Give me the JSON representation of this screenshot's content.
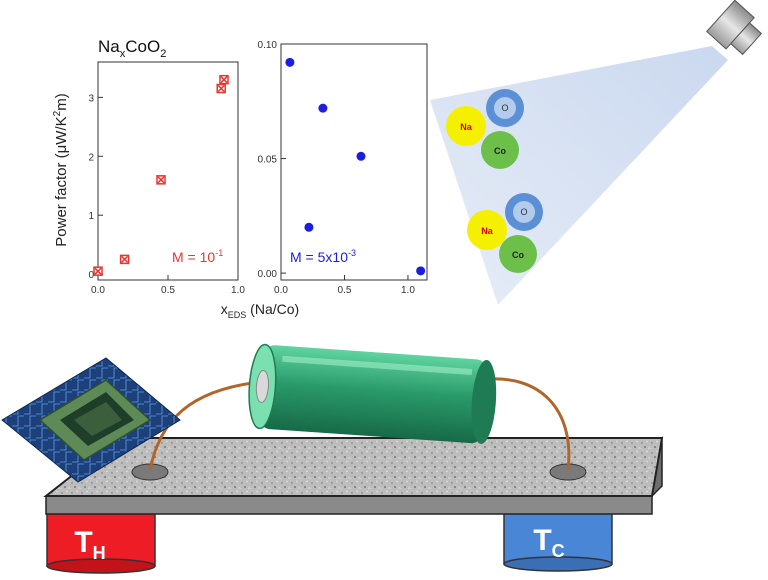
{
  "title": {
    "base": "Na",
    "sub": "x",
    "rest": "CoO",
    "sub2": "2"
  },
  "chart_data": [
    {
      "type": "scatter",
      "ylabel": {
        "pre": "Power factor (",
        "mu": "μ",
        "unit": "W/K",
        "sup": "2",
        "post": "m)"
      },
      "xlim": [
        0,
        1.0
      ],
      "ylim": [
        -0.1,
        3.6
      ],
      "xticks": [
        "0.0",
        "0.5",
        "1.0"
      ],
      "yticks": [
        "0",
        "1",
        "2",
        "3"
      ],
      "marker_color": "#e8352e",
      "annotation": {
        "text": "M = 10",
        "sup": "-1"
      },
      "points": [
        {
          "x": 0.0,
          "y": 0.05
        },
        {
          "x": 0.19,
          "y": 0.25
        },
        {
          "x": 0.45,
          "y": 1.6
        },
        {
          "x": 0.88,
          "y": 3.15
        },
        {
          "x": 0.9,
          "y": 3.3
        }
      ]
    },
    {
      "type": "scatter",
      "xlim": [
        0,
        1.15
      ],
      "ylim": [
        -0.003,
        0.1
      ],
      "xticks": [
        "0.0",
        "0.5",
        "1.0"
      ],
      "yticks": [
        "0.00",
        "0.05",
        "0.10"
      ],
      "marker_color": "#1a1ee0",
      "annotation": {
        "text": "M = 5x10",
        "sup": "-3"
      },
      "points": [
        {
          "x": 0.07,
          "y": 0.092
        },
        {
          "x": 0.33,
          "y": 0.072
        },
        {
          "x": 0.63,
          "y": 0.051
        },
        {
          "x": 0.22,
          "y": 0.02
        },
        {
          "x": 1.1,
          "y": 0.001
        }
      ]
    }
  ],
  "xaxis_label": {
    "main": "x",
    "sub": "EDS",
    "rest": " (Na/Co)"
  },
  "atoms": {
    "na": "Na",
    "o": "O",
    "co": "Co",
    "na_color": "#f5f000",
    "o_color": "#5b8fd6",
    "co_color": "#6cc04a"
  },
  "labels": {
    "hot": "T",
    "hot_sub": "H",
    "cold": "T",
    "cold_sub": "C"
  },
  "colors": {
    "hot": "#ee1c24",
    "cold": "#4a86d6",
    "battery": "#2a9a6a",
    "wire": "#b0652a"
  }
}
